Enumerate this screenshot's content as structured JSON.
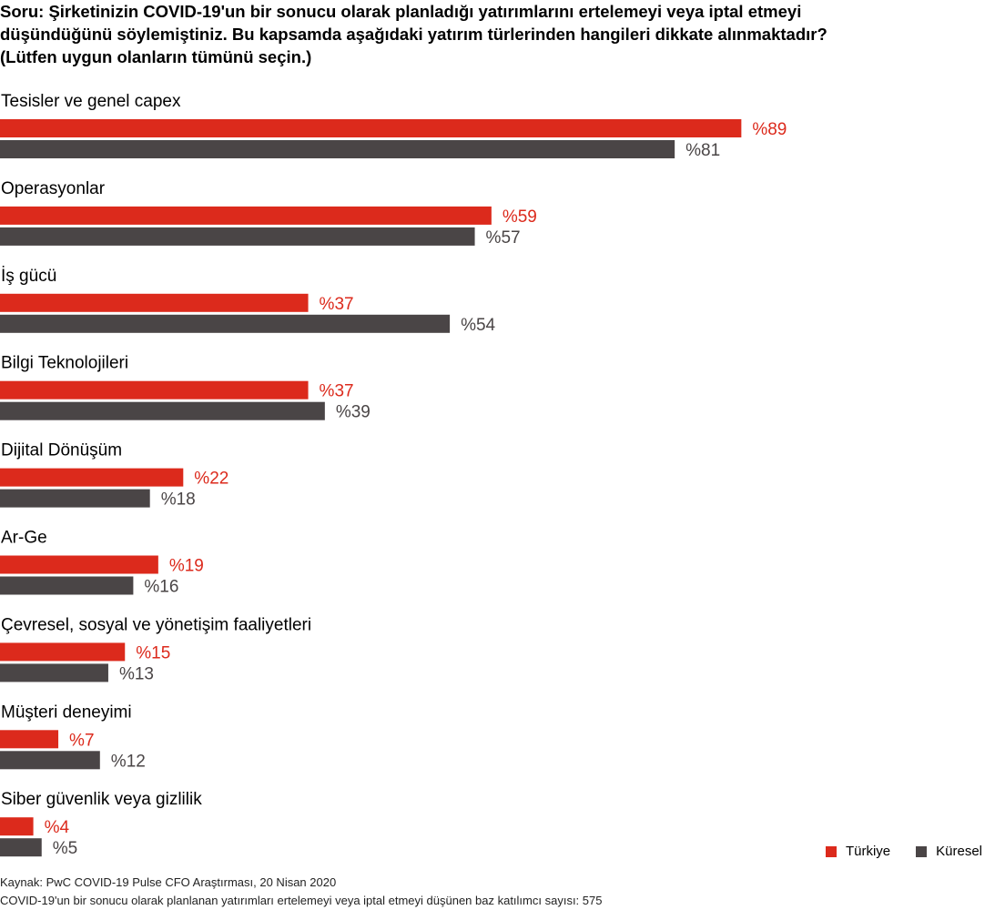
{
  "title_lines": [
    "Soru: Şirketinizin COVID-19'un bir sonucu olarak planladığı yatırımlarını ertelemeyi veya iptal etmeyi",
    "düşündüğünü söylemiştiniz. Bu kapsamda aşağıdaki yatırım türlerinden hangileri dikkate alınmaktadır?",
    "(Lütfen uygun olanların tümünü seçin.)"
  ],
  "colors": {
    "turkiye": "#dc2a1c",
    "kuresel": "#4a4546",
    "text": "#000000"
  },
  "legend": [
    "Türkiye",
    "Küresel"
  ],
  "chart_data": {
    "type": "bar",
    "orientation": "horizontal",
    "categories": [
      "Tesisler ve genel capex",
      "Operasyonlar",
      "İş gücü",
      "Bilgi Teknolojileri",
      "Dijital Dönüşüm",
      "Ar-Ge",
      "Çevresel, sosyal ve yönetişim faaliyetleri",
      "Müşteri deneyimi",
      "Siber güvenlik veya gizlilik"
    ],
    "series": [
      {
        "name": "Türkiye",
        "values": [
          89,
          59,
          37,
          37,
          22,
          19,
          15,
          7,
          4
        ],
        "labels": [
          "%89",
          "%59",
          "%37",
          "%37",
          "%22",
          "%19",
          "%15",
          "%7",
          "%4"
        ]
      },
      {
        "name": "Küresel",
        "values": [
          81,
          57,
          54,
          39,
          18,
          16,
          13,
          12,
          5
        ],
        "labels": [
          "%81",
          "%57",
          "%54",
          "%39",
          "%18",
          "%16",
          "%13",
          "%12",
          "%5"
        ]
      }
    ],
    "unit": "%",
    "xlim": [
      0,
      100
    ],
    "grid": false,
    "legend_position": "bottom-right"
  },
  "footer": {
    "source": "Kaynak: PwC COVID-19 Pulse CFO Araştırması, 20 Nisan 2020",
    "note": "COVID-19'un bir sonucu olarak planlanan yatırımları ertelemeyi veya iptal etmeyi düşünen baz katılımcı sayısı: 575"
  }
}
